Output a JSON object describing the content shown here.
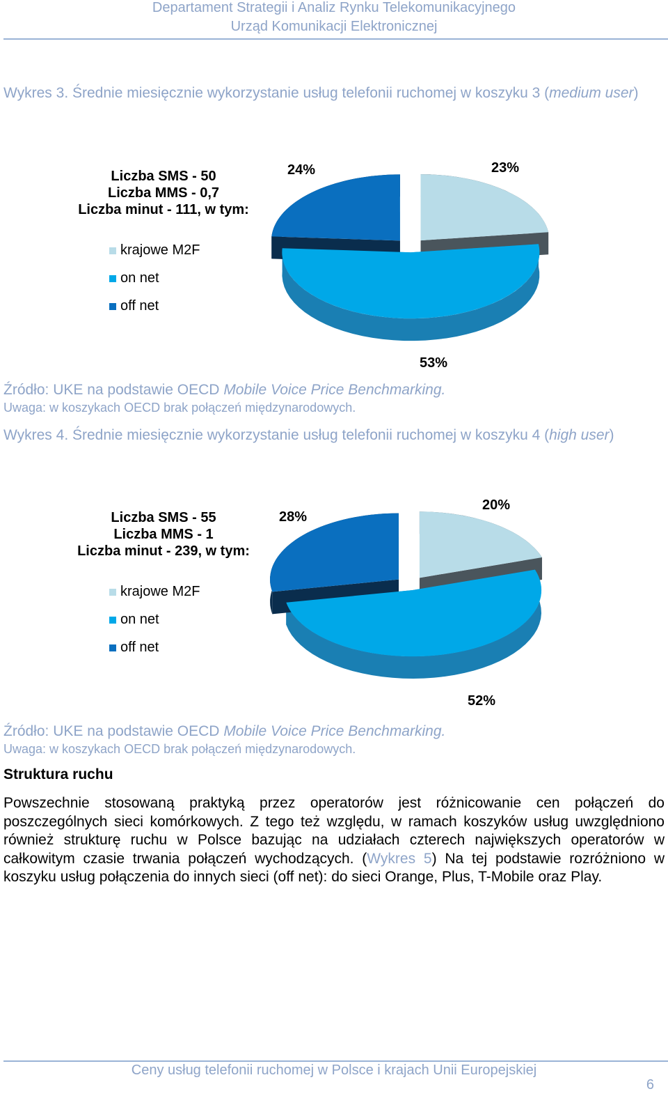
{
  "header": {
    "line1": "Departament Strategii i Analiz Rynku Telekomunikacyjnego",
    "line2": "Urząd Komunikacji Elektronicznej"
  },
  "chart3": {
    "caption_prefix": "Wykres 3. Średnie miesięcznie wykorzystanie usług telefonii ruchomej w koszyku 3 (",
    "caption_italic": "medium user",
    "caption_suffix": ")",
    "summary": [
      "Liczba SMS - 50",
      "Liczba MMS - 0,7",
      "Liczba minut - 111, w tym:"
    ],
    "source_prefix": "Źródło: UKE na podstawie OECD ",
    "source_italic": "Mobile Voice Price Benchmarking.",
    "note": "Uwaga: w koszykach OECD brak połączeń międzynarodowych."
  },
  "chart4": {
    "caption_prefix": "Wykres 4. Średnie miesięcznie wykorzystanie usług telefonii ruchomej w koszyku 4 (",
    "caption_italic": "high user",
    "caption_suffix": ")",
    "summary": [
      "Liczba SMS - 55",
      "Liczba MMS - 1",
      "Liczba minut - 239, w tym:"
    ],
    "source_prefix": "Źródło: UKE na podstawie OECD ",
    "source_italic": "Mobile Voice Price Benchmarking.",
    "note": "Uwaga: w koszykach OECD brak połączeń międzynarodowych."
  },
  "chart_data": [
    {
      "type": "pie",
      "categories": [
        "krajowe M2F",
        "on net",
        "off net"
      ],
      "values": [
        23,
        53,
        24
      ],
      "labels": [
        "23%",
        "53%",
        "24%"
      ],
      "colors": [
        "#b8dce8",
        "#00a8e8",
        "#0a6fbf"
      ]
    },
    {
      "type": "pie",
      "categories": [
        "krajowe M2F",
        "on net",
        "off net"
      ],
      "values": [
        20,
        52,
        28
      ],
      "labels": [
        "20%",
        "52%",
        "28%"
      ],
      "colors": [
        "#b8dce8",
        "#00a8e8",
        "#0a6fbf"
      ]
    }
  ],
  "section": {
    "title": "Struktura ruchu",
    "para_before_ref": "Powszechnie stosowaną praktyką przez operatorów jest różnicowanie cen połączeń do poszczególnych sieci komórkowych. Z tego też względu, w ramach koszyków usług uwzględniono również strukturę ruchu w Polsce bazując na udziałach czterech największych operatorów w całkowitym czasie trwania połączeń wychodzących. (",
    "ref": "Wykres 5",
    "para_after_ref": ") Na tej podstawie rozróżniono w koszyku usług połączenia do innych sieci (off net): do sieci Orange, Plus, T-Mobile oraz Play."
  },
  "footer": {
    "title": "Ceny usług telefonii ruchomej w Polsce i krajach Unii Europejskiej",
    "page": "6"
  }
}
